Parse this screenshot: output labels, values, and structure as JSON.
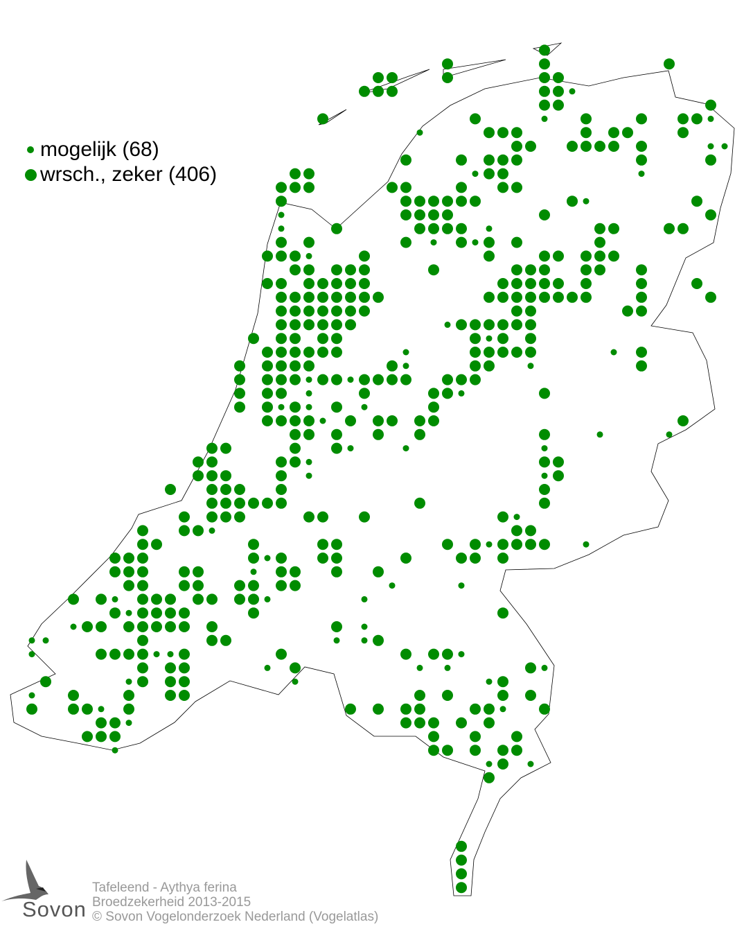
{
  "legend": {
    "items": [
      {
        "label": "mogelijk (68)",
        "size": "small"
      },
      {
        "label": "wrsch., zeker (406)",
        "size": "large"
      }
    ]
  },
  "credits": {
    "species": "Tafeleend - Aythya ferina",
    "subtitle": "Broedzekerheid 2013-2015",
    "copyright": "© Sovon Vogelonderzoek Nederland (Vogelatlas)"
  },
  "logo": {
    "text": "Sovon"
  },
  "colors": {
    "dot": "#008c00",
    "outline": "#000000",
    "credits": "#999999"
  }
}
